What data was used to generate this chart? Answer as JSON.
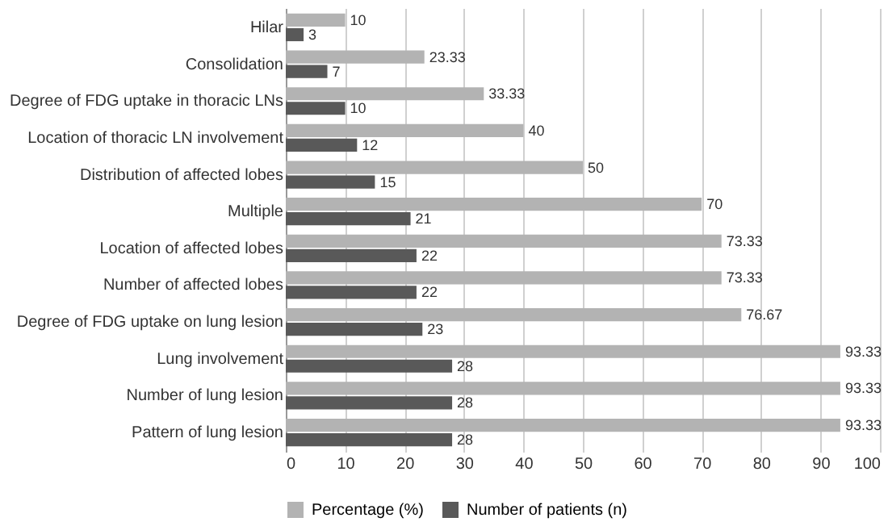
{
  "chart_data": {
    "type": "bar",
    "orientation": "horizontal",
    "categories": [
      "Hilar",
      "Consolidation",
      "Degree of FDG uptake in thoracic LNs",
      "Location of thoracic LN involvement",
      "Distribution of affected lobes",
      "Multiple",
      "Location of affected lobes",
      "Number of affected lobes",
      "Degree of FDG uptake on lung lesion",
      "Lung involvement",
      "Number of lung lesion",
      "Pattern of lung lesion"
    ],
    "series": [
      {
        "name": "Percentage (%)",
        "color": "#b3b3b3",
        "values": [
          10,
          23.33,
          33.33,
          40,
          50,
          70,
          73.33,
          73.33,
          76.67,
          93.33,
          93.33,
          93.33
        ]
      },
      {
        "name": "Number of patients (n)",
        "color": "#595959",
        "values": [
          3,
          7,
          10,
          12,
          15,
          21,
          22,
          22,
          23,
          28,
          28,
          28
        ]
      }
    ],
    "xlim": [
      0,
      100
    ],
    "xticks": [
      0,
      10,
      20,
      30,
      40,
      50,
      60,
      70,
      80,
      90,
      100
    ],
    "grid": "x",
    "legend": "bottom",
    "data_labels": true
  }
}
